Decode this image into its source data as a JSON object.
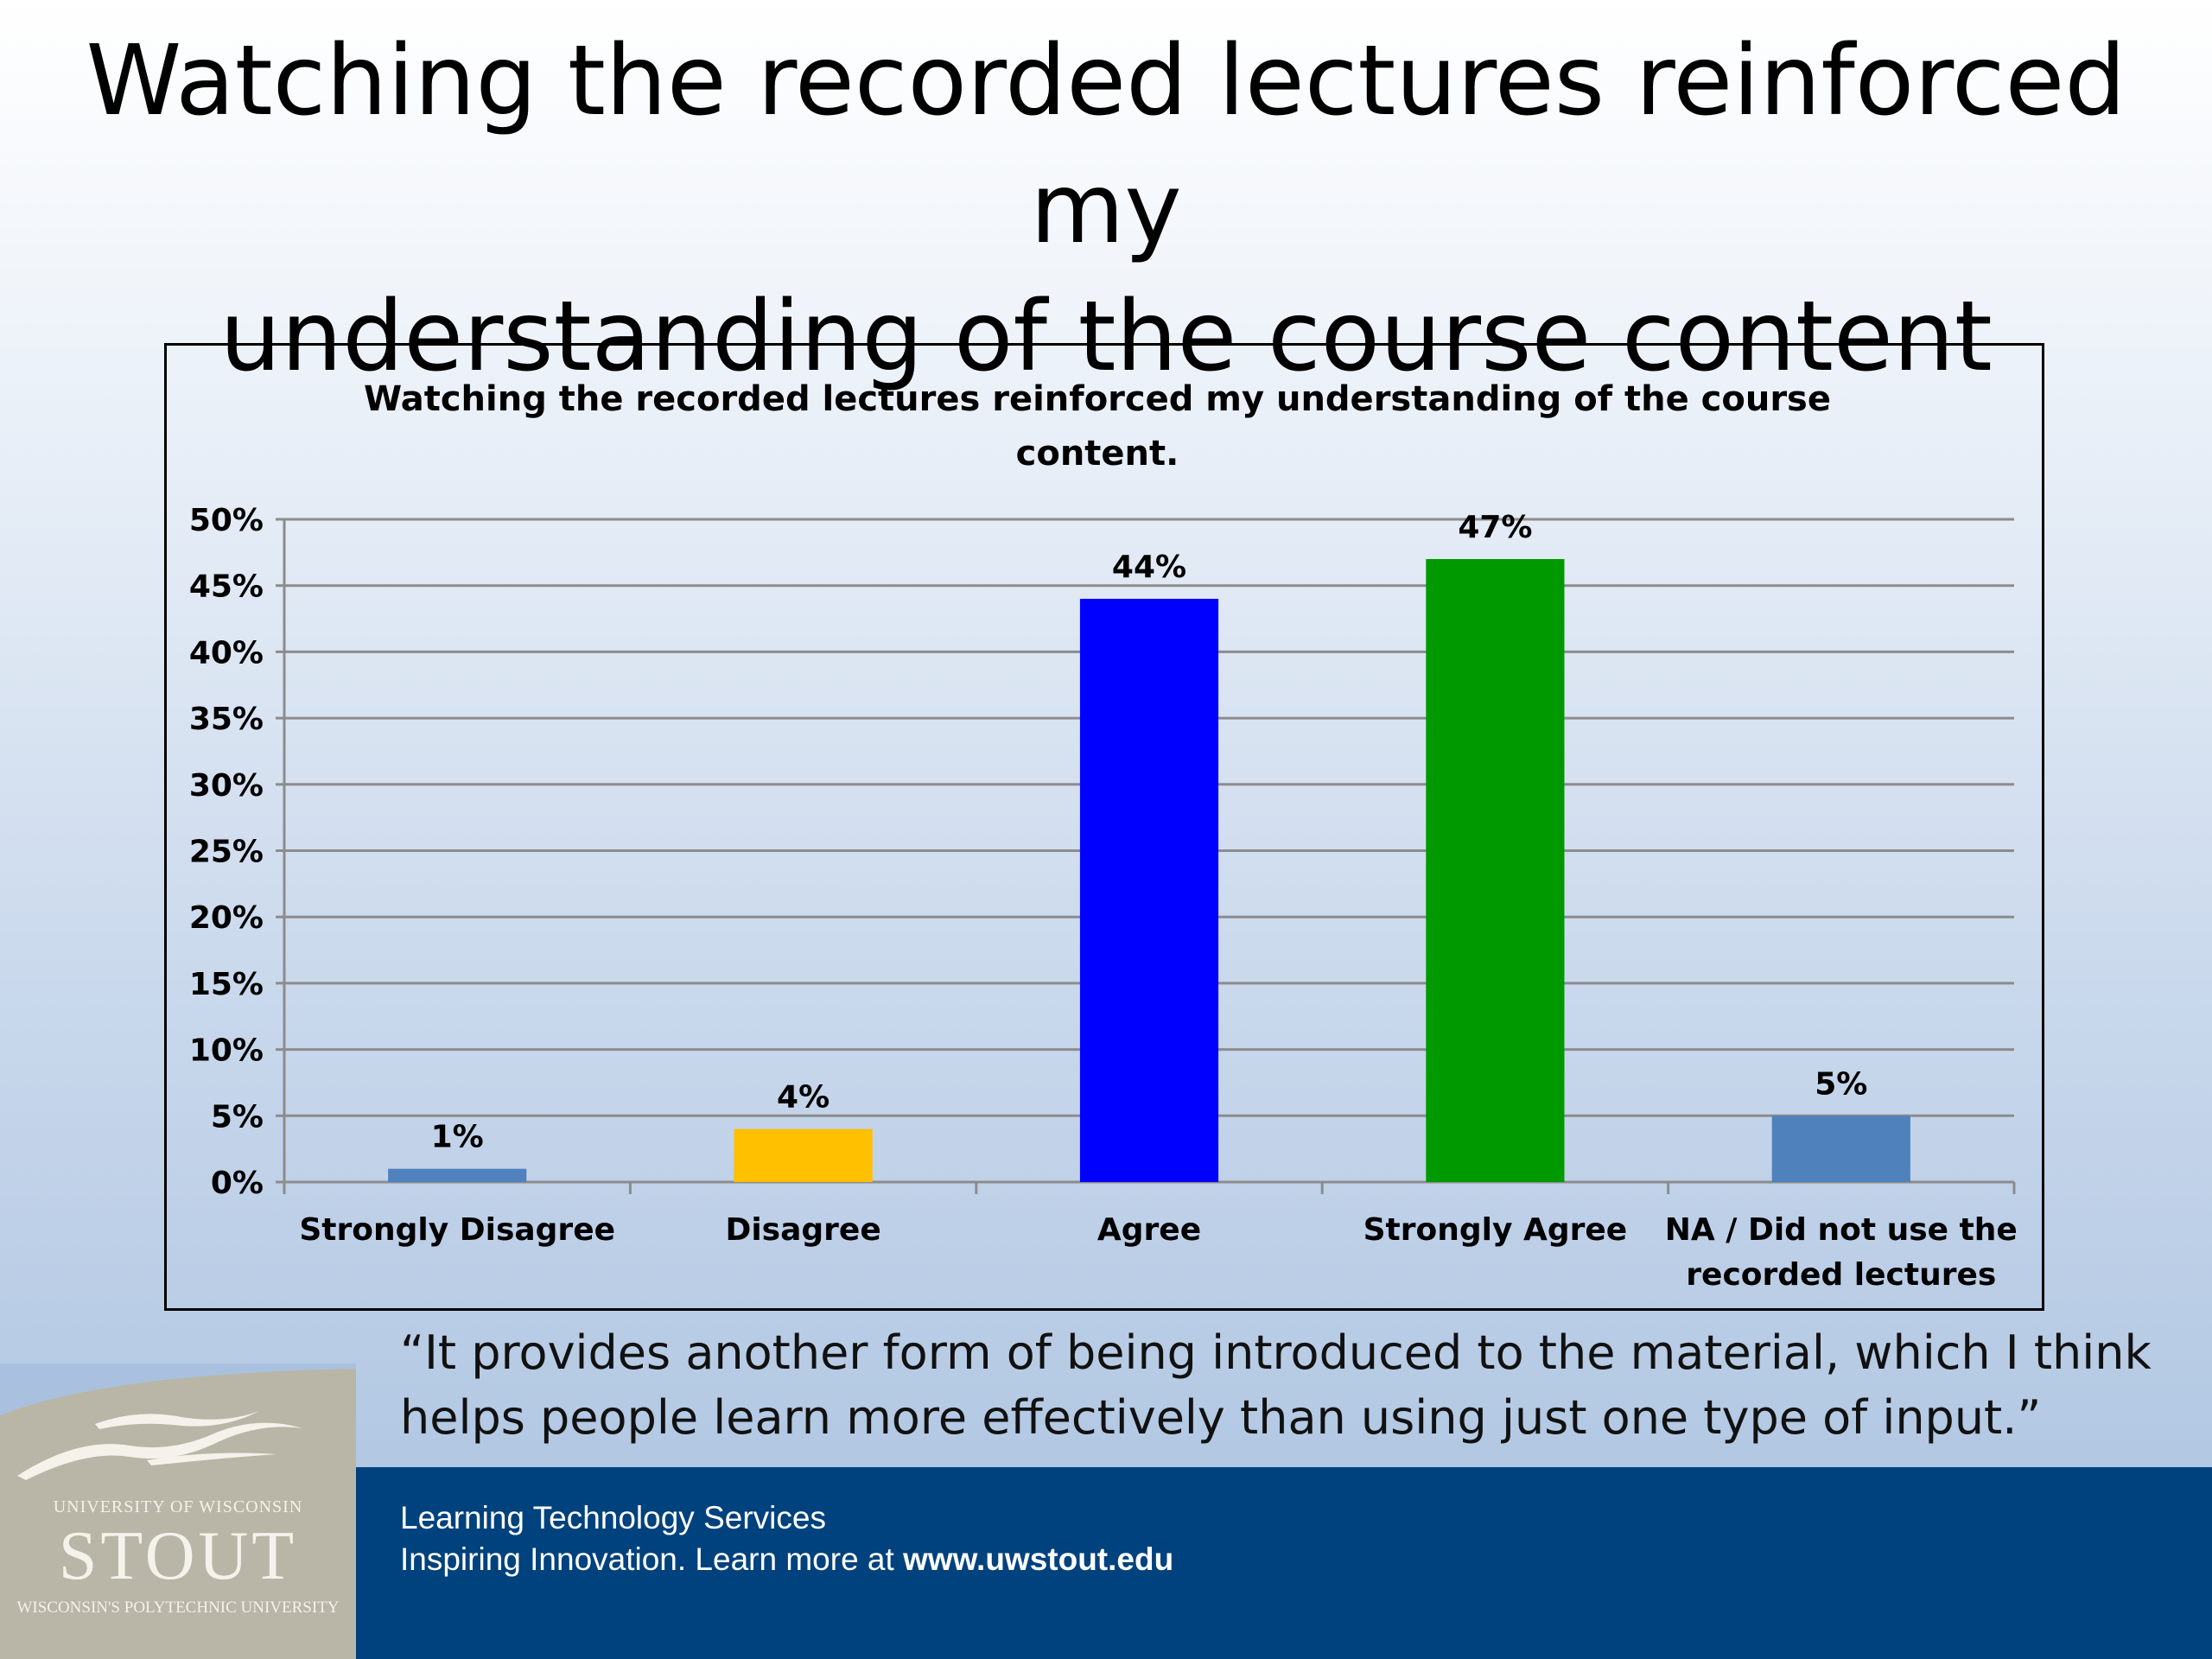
{
  "slide": {
    "title_line1": "Watching the recorded lectures reinforced my",
    "title_line2": "understanding of the course content",
    "quote_line1": "“It provides another form of being introduced to the material, which I think",
    "quote_line2": "helps people learn more effectively than using just one type of input.”"
  },
  "footer": {
    "line1": "Learning Technology Services",
    "line2_prefix": "Inspiring Innovation.  Learn more at ",
    "url": "www.uwstout.edu"
  },
  "logo": {
    "line1": "UNIVERSITY OF WISCONSIN",
    "name": "STOUT",
    "line2": "WISCONSIN'S POLYTECHNIC UNIVERSITY"
  },
  "chart_data": {
    "type": "bar",
    "title": "Watching the recorded lectures reinforced my understanding of the course content.",
    "title_lines": [
      "Watching the recorded lectures reinforced my understanding of the course",
      "content."
    ],
    "categories": [
      "Strongly Disagree",
      "Disagree",
      "Agree",
      "Strongly Agree",
      "NA / Did not use the recorded lectures"
    ],
    "category_lines": [
      [
        "Strongly Disagree"
      ],
      [
        "Disagree"
      ],
      [
        "Agree"
      ],
      [
        "Strongly Agree"
      ],
      [
        "NA / Did not use the",
        "recorded lectures"
      ]
    ],
    "values": [
      1,
      4,
      44,
      47,
      5
    ],
    "data_labels": [
      "1%",
      "4%",
      "44%",
      "47%",
      "5%"
    ],
    "bar_colors": [
      "#4f81bd",
      "#ffc000",
      "#0000ff",
      "#009900",
      "#4f81bd"
    ],
    "ylim": [
      0,
      50
    ],
    "yticks": [
      0,
      5,
      10,
      15,
      20,
      25,
      30,
      35,
      40,
      45,
      50
    ],
    "ytick_labels": [
      "0%",
      "5%",
      "10%",
      "15%",
      "20%",
      "25%",
      "30%",
      "35%",
      "40%",
      "45%",
      "50%"
    ],
    "xlabel": "",
    "ylabel": "",
    "grid": true,
    "legend": "none"
  }
}
